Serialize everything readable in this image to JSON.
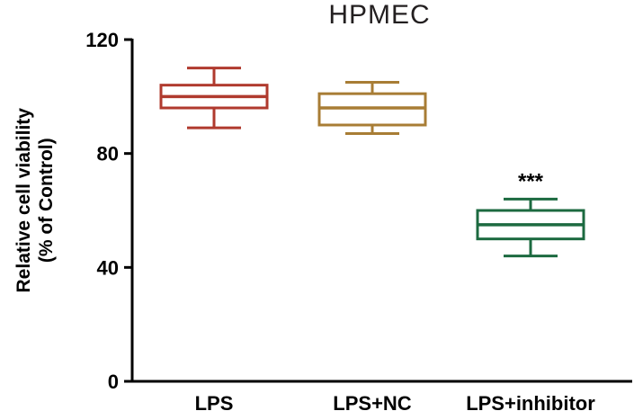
{
  "chart_data": {
    "type": "box",
    "title": "HPMEC",
    "ylabel": "Relative cell viability (% of Control)",
    "ylabel_lines": [
      "Relative cell viability",
      "(% of Control)"
    ],
    "ylim": [
      0,
      120
    ],
    "yticks": [
      0,
      40,
      80,
      120
    ],
    "grid": false,
    "legend": false,
    "axis_color": "#000000",
    "annotation_color": "#000000",
    "categories": [
      "LPS",
      "LPS+NC",
      "LPS+inhibitor"
    ],
    "series": [
      {
        "name": "LPS",
        "color": "#b03a2e",
        "whisker_low": 89,
        "q1": 96,
        "median": 100,
        "q3": 104,
        "whisker_high": 110,
        "annotation": ""
      },
      {
        "name": "LPS+NC",
        "color": "#a87d35",
        "whisker_low": 87,
        "q1": 90,
        "median": 96,
        "q3": 101,
        "whisker_high": 105,
        "annotation": ""
      },
      {
        "name": "LPS+inhibitor",
        "color": "#1c6a40",
        "whisker_low": 44,
        "q1": 50,
        "median": 55,
        "q3": 60,
        "whisker_high": 64,
        "annotation": "***"
      }
    ]
  }
}
